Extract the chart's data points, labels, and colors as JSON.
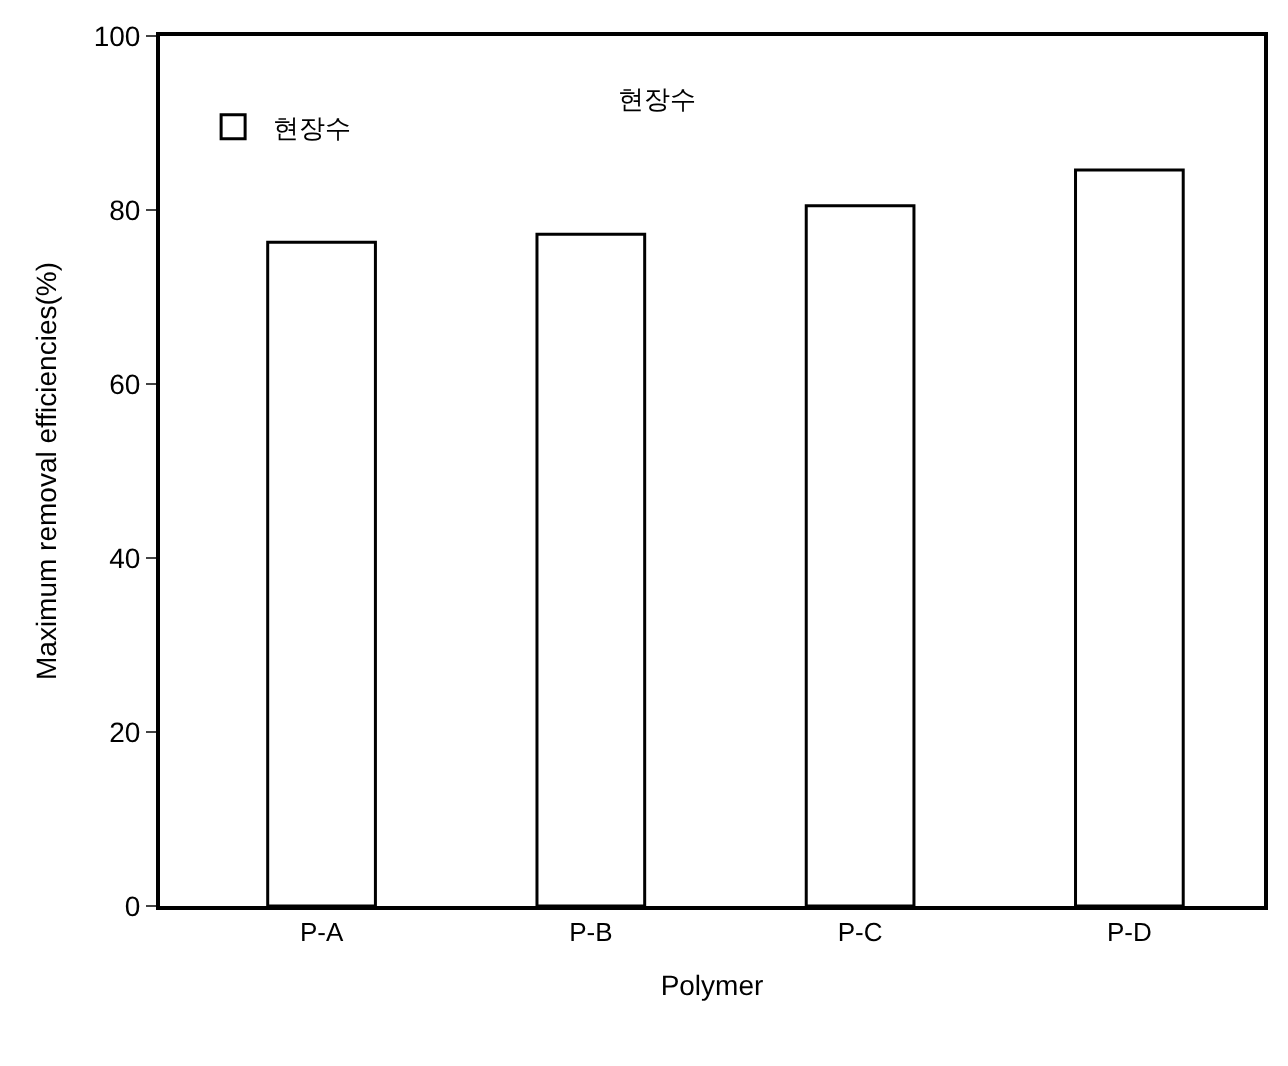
{
  "chart_data": {
    "type": "bar",
    "xlabel": "Polymer",
    "ylabel": "Maximum removal efficiencies(%)",
    "categories": [
      "P-A",
      "P-B",
      "P-C",
      "P-D"
    ],
    "series": [
      {
        "name": "현장수",
        "color": "#ffffff",
        "values": [
          76.3,
          77.2,
          80.5,
          84.6
        ]
      }
    ],
    "ylim": [
      0,
      100
    ],
    "yticks": [
      0,
      20,
      40,
      60,
      80,
      100
    ],
    "grid": false,
    "legend": "top left",
    "annotations": [
      "현장수"
    ]
  }
}
